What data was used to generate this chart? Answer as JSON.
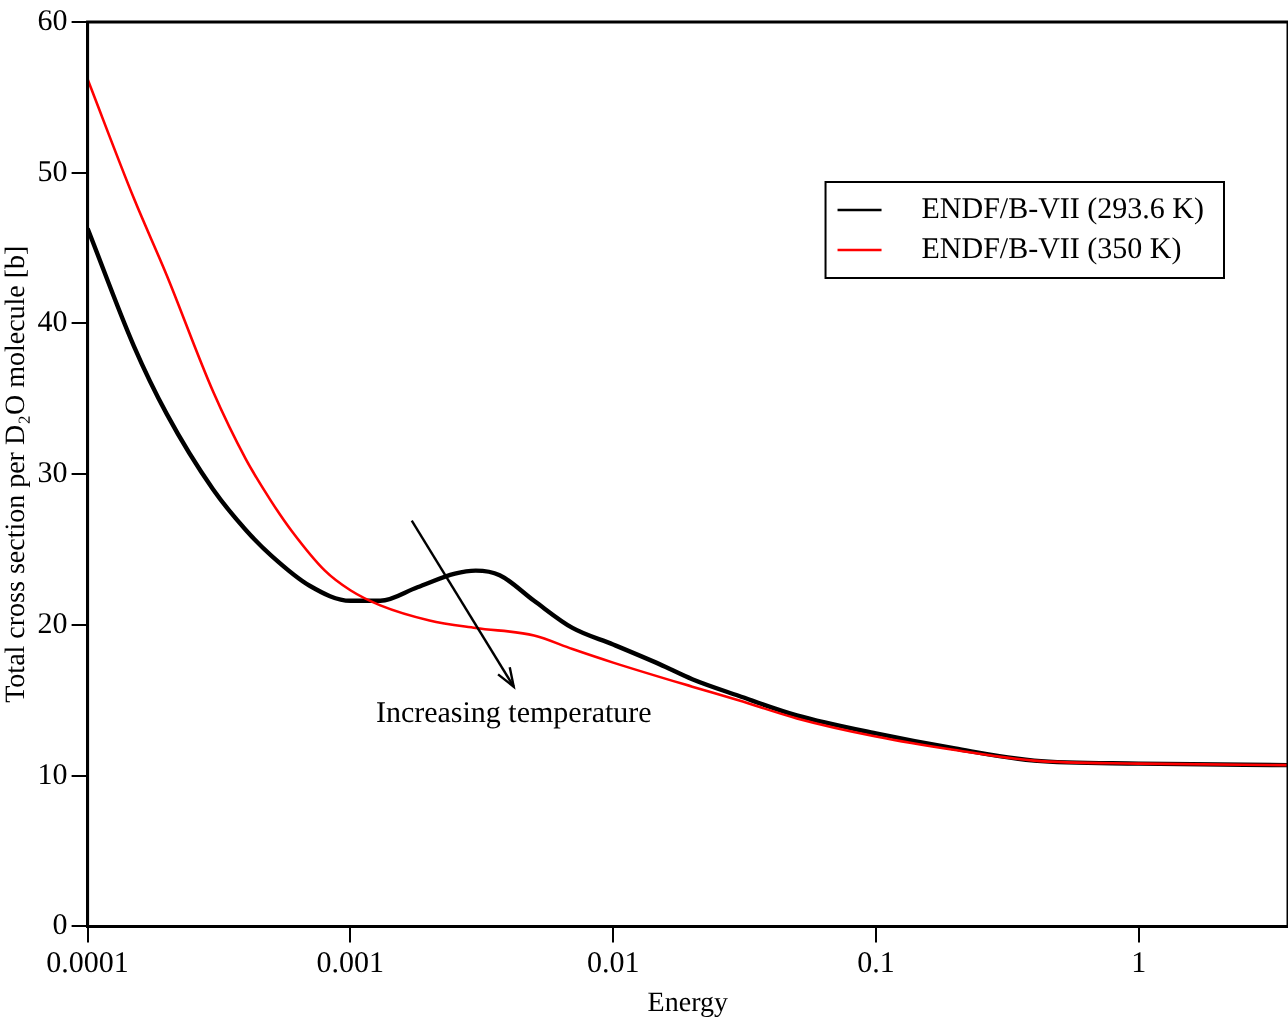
{
  "chart_data": {
    "type": "line",
    "xlabel": "Energy",
    "ylabel": "Total cross section per D₂O molecule [b]",
    "log": "x",
    "xlim": [
      0.0001,
      3.7
    ],
    "xticks": [
      0.0001,
      0.001,
      0.01,
      0.1,
      1
    ],
    "ylim": [
      0,
      60
    ],
    "yticks": [
      0,
      10,
      20,
      30,
      40,
      50,
      60
    ],
    "grid": false,
    "legend": "top right",
    "marker": "none",
    "line_style": "solid",
    "annotations": [
      "Increasing temperature"
    ],
    "series": [
      {
        "name": "ENDF/B-VII (293.6 K)",
        "color": "#000000",
        "x": [
          0.0001,
          0.00015,
          0.0002,
          0.0003,
          0.0004,
          0.0005,
          0.0007,
          0.001,
          0.0013,
          0.0018,
          0.0025,
          0.003,
          0.0037,
          0.005,
          0.007,
          0.01,
          0.015,
          0.02,
          0.03,
          0.05,
          0.1,
          0.2,
          0.4,
          1,
          3.7
        ],
        "values": [
          46.3,
          38.5,
          34,
          29,
          26.3,
          24.6,
          22.6,
          21.6,
          21.6,
          22.5,
          23.4,
          23.6,
          23.3,
          21.6,
          19.8,
          18.7,
          17.4,
          16.4,
          15.3,
          14,
          12.8,
          11.8,
          11,
          10.8,
          10.7
        ]
      },
      {
        "name": "ENDF/B-VII (350 K)",
        "color": "#ff0000",
        "x": [
          0.0001,
          0.00015,
          0.0002,
          0.0003,
          0.0004,
          0.0005,
          0.0006,
          0.0008,
          0.001,
          0.0013,
          0.002,
          0.003,
          0.005,
          0.007,
          0.01,
          0.02,
          0.03,
          0.05,
          0.1,
          0.2,
          0.4,
          1,
          3.7
        ],
        "values": [
          56.2,
          48.3,
          43.2,
          35.5,
          31,
          28.2,
          26.2,
          23.6,
          22.3,
          21.3,
          20.3,
          19.8,
          19.3,
          18.4,
          17.5,
          15.9,
          15,
          13.8,
          12.6,
          11.7,
          11,
          10.8,
          10.7
        ]
      }
    ]
  }
}
